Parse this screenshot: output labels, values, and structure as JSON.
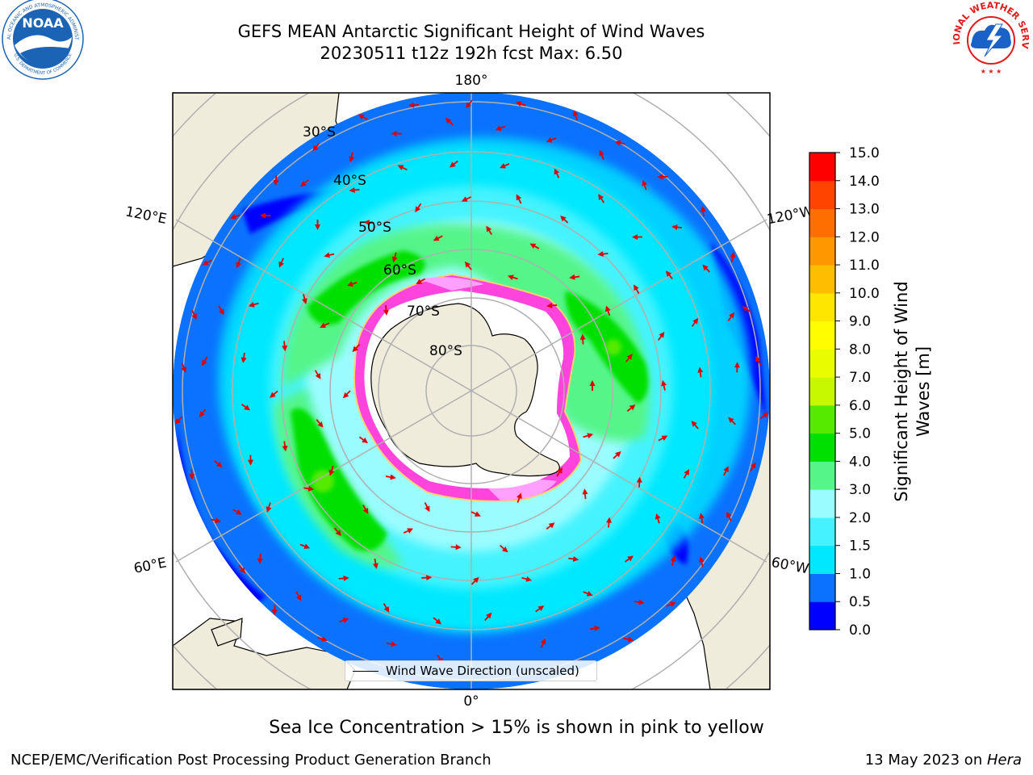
{
  "title": {
    "line1": "GEFS MEAN Antarctic Significant Height of Wind Waves",
    "line2": "20230511 t12z 192h fcst   Max: 6.50"
  },
  "logos": {
    "left": {
      "text": "NOAA",
      "ring_text": "NATIONAL OCEANIC AND ATMOSPHERIC ADMINISTRATION",
      "ring_text_bottom": "U.S. DEPARTMENT OF COMMERCE",
      "color": "#1b63b5"
    },
    "right": {
      "ring_text": "NATIONAL WEATHER SERVICE",
      "color": "#e01b1b",
      "inner_color": "#1a62c7"
    }
  },
  "map": {
    "longitude_labels": [
      "180°",
      "120°E",
      "120°W",
      "60°E",
      "60°W",
      "0°"
    ],
    "latitude_labels": [
      "30°S",
      "40°S",
      "50°S",
      "60°S",
      "70°S",
      "80°S"
    ],
    "land_color": "#efecdc",
    "ocean_colors": {
      "0.0-0.5": "#0000ff",
      "0.5-1.0": "#0a72ff",
      "1.0-1.5": "#00e8ff",
      "1.5-2.0": "#44f3ff",
      "2.0-3.0": "#9bfcff",
      "3.0-4.0": "#55f58a",
      "4.0-5.0": "#00e000",
      "5.0-6.0": "#55ea00"
    },
    "sea_ice_colors": [
      "#ff44dd",
      "#ffa0ff",
      "#ffd070"
    ],
    "arrow_color": "#e00000",
    "legend_label": "Wind Wave Direction (unscaled)"
  },
  "colorbar": {
    "label_line1": "Significant Height of Wind",
    "label_line2": "Waves [m]",
    "ticks": [
      "0.0",
      "0.5",
      "1.0",
      "1.5",
      "2.0",
      "3.0",
      "4.0",
      "5.0",
      "6.0",
      "7.0",
      "8.0",
      "9.0",
      "10.0",
      "11.0",
      "12.0",
      "13.0",
      "14.0",
      "15.0"
    ],
    "colors": [
      "#0000ff",
      "#0a72ff",
      "#00e8ff",
      "#44f3ff",
      "#9bfcff",
      "#55f58a",
      "#00e000",
      "#55ea00",
      "#c8f800",
      "#eafc00",
      "#fffd00",
      "#ffe600",
      "#ffbd00",
      "#ff9800",
      "#ff6e00",
      "#ff4400",
      "#ff0000"
    ]
  },
  "footer": {
    "note": "Sea Ice Concentration > 15% is shown in pink to yellow",
    "left": "NCEP/EMC/Verification Post Processing Product Generation Branch",
    "right_date": "13 May 2023 on ",
    "right_host": "Hera"
  }
}
